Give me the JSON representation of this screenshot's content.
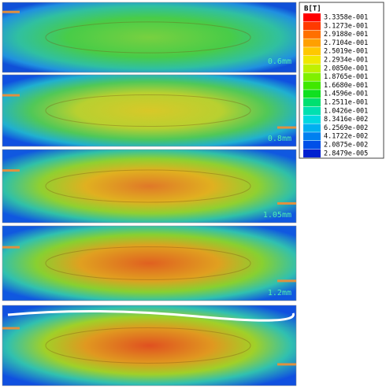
{
  "legend": {
    "title": "B[T]",
    "entries": [
      {
        "label": "3.3358e-001",
        "color": "#ff0000"
      },
      {
        "label": "3.1273e-001",
        "color": "#ff3a00"
      },
      {
        "label": "2.9188e-001",
        "color": "#ff7000"
      },
      {
        "label": "2.7104e-001",
        "color": "#ffa000"
      },
      {
        "label": "2.5019e-001",
        "color": "#ffc800"
      },
      {
        "label": "2.2934e-001",
        "color": "#f0e800"
      },
      {
        "label": "2.0850e-001",
        "color": "#c0f000"
      },
      {
        "label": "1.8765e-001",
        "color": "#80f000"
      },
      {
        "label": "1.6680e-001",
        "color": "#40e800"
      },
      {
        "label": "1.4596e-001",
        "color": "#10e020"
      },
      {
        "label": "1.2511e-001",
        "color": "#00e070"
      },
      {
        "label": "1.0426e-001",
        "color": "#00e0b0"
      },
      {
        "label": "8.3416e-002",
        "color": "#00d8e0"
      },
      {
        "label": "6.2569e-002",
        "color": "#00b0f0"
      },
      {
        "label": "4.1722e-002",
        "color": "#0080f0"
      },
      {
        "label": "2.0875e-002",
        "color": "#0050e8"
      },
      {
        "label": "2.8479e-005",
        "color": "#0020d0"
      }
    ]
  },
  "panel_labels": [
    "0.6mm",
    "0.8mm",
    "1.05mm",
    "1.2mm"
  ]
}
